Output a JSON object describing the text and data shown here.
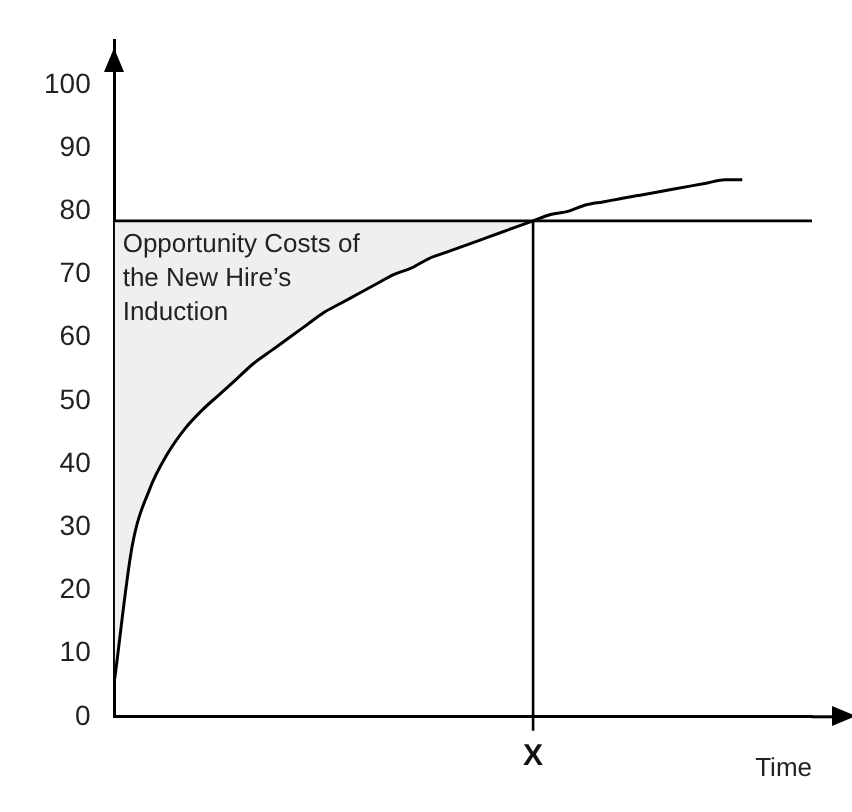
{
  "chart_data": {
    "type": "line",
    "xlabel": "Time",
    "categories": [
      null,
      null,
      null,
      null,
      null,
      null,
      null,
      null,
      null,
      null,
      null,
      null,
      null,
      null,
      null,
      null,
      null,
      null,
      null,
      null,
      null,
      null,
      null,
      null,
      "X",
      null,
      null,
      null,
      null,
      null,
      null,
      null,
      null,
      null,
      null,
      null,
      null,
      null,
      null,
      null,
      null
    ],
    "series": [
      {
        "color": "#000000",
        "values": [
          6,
          27,
          36,
          41.5,
          45.5,
          48.5,
          51,
          53.5,
          56,
          58,
          60,
          62,
          64,
          65.5,
          67,
          68.5,
          70,
          71,
          72.5,
          73.5,
          74.5,
          75.5,
          76.5,
          77.5,
          78.5,
          79.5,
          80,
          81,
          81.5,
          82,
          82.5,
          83,
          83.5,
          84,
          84.5,
          85,
          85,
          null,
          null,
          null,
          null
        ]
      }
    ],
    "ylim": [
      0,
      107
    ],
    "yticks": [
      0,
      10,
      20,
      30,
      40,
      50,
      60,
      70,
      80,
      90,
      100
    ],
    "ref_lines": [
      {
        "axis": "y",
        "value": 78.5,
        "color": "#000000"
      },
      {
        "axis": "x",
        "value": "X",
        "color": "#000000"
      }
    ],
    "annotations": [
      "Opportunity Costs of the New Hire’s Induction"
    ],
    "grid": false,
    "legend": false,
    "marker": "none",
    "line_style": "solid"
  }
}
